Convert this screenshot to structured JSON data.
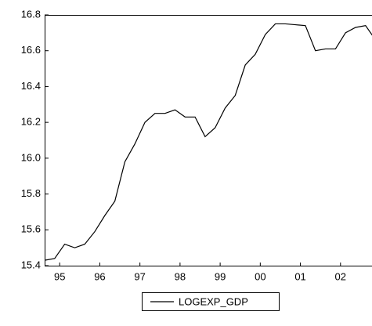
{
  "chart_data": {
    "type": "line",
    "x": [
      1995,
      1995.25,
      1995.5,
      1995.75,
      1996,
      1996.25,
      1996.5,
      1996.75,
      1997,
      1997.25,
      1997.5,
      1997.75,
      1998,
      1998.25,
      1998.5,
      1998.75,
      1999,
      1999.25,
      1999.5,
      1999.75,
      2000,
      2000.25,
      2000.5,
      2000.75,
      2001,
      2001.25,
      2001.5,
      2001.75,
      2002,
      2002.25,
      2002.5,
      2002.75,
      2003,
      2003.25
    ],
    "series": [
      {
        "name": "LOGEXP_GDP",
        "color": "#000000",
        "values": [
          15.43,
          15.44,
          15.52,
          15.5,
          15.52,
          15.59,
          15.68,
          15.76,
          15.98,
          16.08,
          16.2,
          16.25,
          16.25,
          16.27,
          16.23,
          16.23,
          16.12,
          16.17,
          16.28,
          16.35,
          16.52,
          16.58,
          16.69,
          16.75,
          16.75,
          16.745,
          16.74,
          16.6,
          16.61,
          16.61,
          16.7,
          16.73,
          16.74,
          16.66
        ]
      }
    ],
    "xlim": [
      1995,
      2003.16
    ],
    "ylim": [
      15.4,
      16.8
    ],
    "xticks": [
      {
        "value": 1995.375,
        "label": "95"
      },
      {
        "value": 1996.375,
        "label": "96"
      },
      {
        "value": 1997.375,
        "label": "97"
      },
      {
        "value": 1998.375,
        "label": "98"
      },
      {
        "value": 1999.375,
        "label": "99"
      },
      {
        "value": 2000.375,
        "label": "00"
      },
      {
        "value": 2001.375,
        "label": "01"
      },
      {
        "value": 2002.375,
        "label": "02"
      }
    ],
    "yticks": [
      15.4,
      15.6,
      15.8,
      {
        "value": 16,
        "label": "16.0"
      },
      16.2,
      16.4,
      16.6,
      16.8
    ],
    "legend": "bottom"
  }
}
